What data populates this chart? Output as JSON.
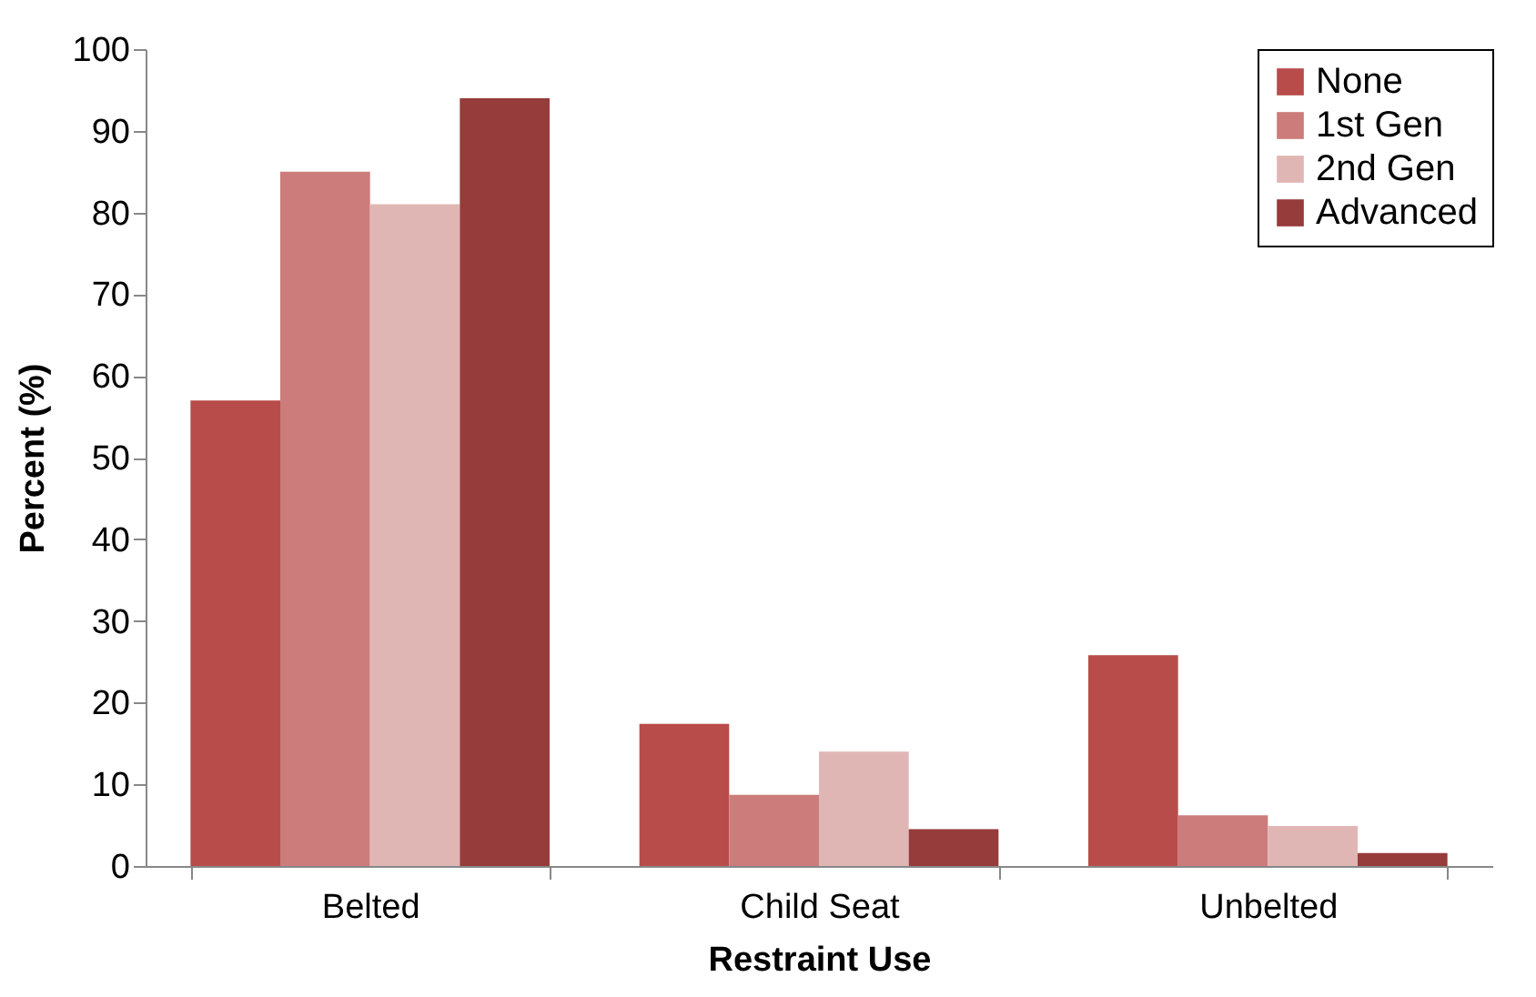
{
  "chart_data": {
    "type": "bar",
    "xlabel": "Restraint Use",
    "ylabel": "Percent (%)",
    "categories": [
      "Belted",
      "Child Seat",
      "Unbelted"
    ],
    "series": [
      {
        "name": "None",
        "color": "#b84c4a",
        "values": [
          57,
          17.4,
          25.8
        ]
      },
      {
        "name": "1st Gen",
        "color": "#cc7c7a",
        "values": [
          85,
          8.7,
          6.2
        ]
      },
      {
        "name": "2nd Gen",
        "color": "#e0b6b5",
        "values": [
          81,
          14,
          4.9
        ]
      },
      {
        "name": "Advanced",
        "color": "#963c3b",
        "values": [
          94,
          4.5,
          1.6
        ]
      }
    ],
    "ylim": [
      0,
      100
    ],
    "yticks": [
      0,
      10,
      20,
      30,
      40,
      50,
      60,
      70,
      80,
      90,
      100
    ],
    "grid": false,
    "legend": "top right"
  }
}
